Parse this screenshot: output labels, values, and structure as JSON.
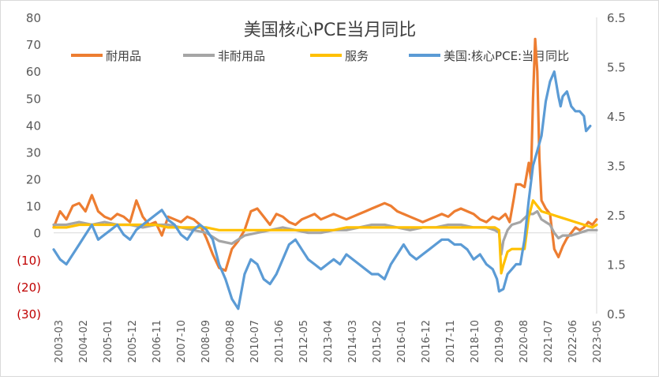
{
  "chart_data": {
    "type": "line",
    "title": "美国核心PCE当月同比",
    "x_tick_labels": [
      "2003-03",
      "2004-02",
      "2005-01",
      "2005-12",
      "2006-11",
      "2007-10",
      "2008-09",
      "2009-08",
      "2010-07",
      "2011-06",
      "2012-05",
      "2013-04",
      "2014-03",
      "2015-02",
      "2016-01",
      "2016-12",
      "2017-11",
      "2018-10",
      "2019-09",
      "2020-08",
      "2021-07",
      "2022-06",
      "2023-05"
    ],
    "y_left": {
      "ylim": [
        -30,
        80
      ],
      "ticks": [
        -30,
        -20,
        -10,
        0,
        10,
        20,
        30,
        40,
        50,
        60,
        70,
        80
      ],
      "tick_labels": [
        "(30)",
        "(20)",
        "(10)",
        "0",
        "10",
        "20",
        "30",
        "40",
        "50",
        "60",
        "70",
        "80"
      ],
      "negative_label_color": "#c00000"
    },
    "y_right": {
      "ylim": [
        0.5,
        6.5
      ],
      "ticks": [
        0.5,
        1.5,
        2.5,
        3.5,
        4.5,
        5.5,
        6.5
      ],
      "tick_labels": [
        "0.5",
        "1.5",
        "2.5",
        "3.5",
        "4.5",
        "5.5",
        "6.5"
      ]
    },
    "legend_position": "top",
    "grid": false,
    "zero_line": true,
    "series": [
      {
        "name": "耐用品",
        "axis": "left",
        "color": "#ed7d31",
        "points": [
          [
            0,
            2
          ],
          [
            3,
            8
          ],
          [
            6,
            5
          ],
          [
            9,
            10
          ],
          [
            12,
            11
          ],
          [
            15,
            8
          ],
          [
            18,
            14
          ],
          [
            21,
            8
          ],
          [
            24,
            6
          ],
          [
            27,
            5
          ],
          [
            30,
            7
          ],
          [
            33,
            6
          ],
          [
            36,
            4
          ],
          [
            39,
            12
          ],
          [
            42,
            6
          ],
          [
            45,
            3
          ],
          [
            48,
            4
          ],
          [
            51,
            -1
          ],
          [
            54,
            6
          ],
          [
            57,
            5
          ],
          [
            60,
            4
          ],
          [
            63,
            6
          ],
          [
            66,
            5
          ],
          [
            69,
            3
          ],
          [
            72,
            -2
          ],
          [
            75,
            -8
          ],
          [
            78,
            -13
          ],
          [
            81,
            -14
          ],
          [
            84,
            -6
          ],
          [
            87,
            -3
          ],
          [
            90,
            1
          ],
          [
            93,
            8
          ],
          [
            96,
            9
          ],
          [
            99,
            6
          ],
          [
            102,
            3
          ],
          [
            105,
            7
          ],
          [
            108,
            6
          ],
          [
            111,
            4
          ],
          [
            114,
            3
          ],
          [
            117,
            5
          ],
          [
            120,
            6
          ],
          [
            123,
            7
          ],
          [
            126,
            5
          ],
          [
            129,
            6
          ],
          [
            132,
            7
          ],
          [
            135,
            6
          ],
          [
            138,
            5
          ],
          [
            141,
            6
          ],
          [
            144,
            7
          ],
          [
            147,
            8
          ],
          [
            150,
            9
          ],
          [
            153,
            10
          ],
          [
            156,
            11
          ],
          [
            159,
            10
          ],
          [
            162,
            8
          ],
          [
            165,
            7
          ],
          [
            168,
            6
          ],
          [
            171,
            5
          ],
          [
            174,
            4
          ],
          [
            177,
            5
          ],
          [
            180,
            6
          ],
          [
            183,
            7
          ],
          [
            186,
            6
          ],
          [
            189,
            8
          ],
          [
            192,
            9
          ],
          [
            195,
            8
          ],
          [
            198,
            7
          ],
          [
            201,
            5
          ],
          [
            204,
            4
          ],
          [
            207,
            6
          ],
          [
            210,
            5
          ],
          [
            213,
            7
          ],
          [
            215,
            4
          ],
          [
            217,
            13
          ],
          [
            218,
            18
          ],
          [
            220,
            18
          ],
          [
            222,
            17
          ],
          [
            224,
            26
          ],
          [
            225,
            20
          ],
          [
            226,
            50
          ],
          [
            227,
            72
          ],
          [
            228,
            60
          ],
          [
            229,
            28
          ],
          [
            230,
            12
          ],
          [
            232,
            9
          ],
          [
            234,
            7
          ],
          [
            236,
            -6
          ],
          [
            238,
            -9
          ],
          [
            240,
            -5
          ],
          [
            242,
            -2
          ],
          [
            244,
            0
          ],
          [
            246,
            2
          ],
          [
            248,
            1
          ],
          [
            250,
            2
          ],
          [
            252,
            4
          ],
          [
            254,
            3
          ],
          [
            256,
            5
          ]
        ]
      },
      {
        "name": "非耐用品",
        "axis": "left",
        "color": "#a5a5a5",
        "points": [
          [
            0,
            3
          ],
          [
            6,
            3
          ],
          [
            12,
            4
          ],
          [
            18,
            3
          ],
          [
            24,
            4
          ],
          [
            30,
            3
          ],
          [
            36,
            3
          ],
          [
            42,
            2
          ],
          [
            48,
            3
          ],
          [
            54,
            3
          ],
          [
            60,
            2
          ],
          [
            66,
            1
          ],
          [
            72,
            0
          ],
          [
            78,
            -3
          ],
          [
            84,
            -4
          ],
          [
            90,
            -1
          ],
          [
            96,
            0
          ],
          [
            102,
            1
          ],
          [
            108,
            2
          ],
          [
            114,
            1
          ],
          [
            120,
            0
          ],
          [
            126,
            0
          ],
          [
            132,
            1
          ],
          [
            138,
            1
          ],
          [
            144,
            2
          ],
          [
            150,
            3
          ],
          [
            156,
            3
          ],
          [
            162,
            2
          ],
          [
            168,
            1
          ],
          [
            174,
            2
          ],
          [
            180,
            2
          ],
          [
            186,
            3
          ],
          [
            192,
            3
          ],
          [
            198,
            2
          ],
          [
            204,
            2
          ],
          [
            208,
            1
          ],
          [
            210,
            0
          ],
          [
            211,
            -8
          ],
          [
            212,
            -3
          ],
          [
            214,
            1
          ],
          [
            216,
            3
          ],
          [
            220,
            4
          ],
          [
            224,
            7
          ],
          [
            226,
            7
          ],
          [
            228,
            8
          ],
          [
            230,
            5
          ],
          [
            232,
            4
          ],
          [
            234,
            3
          ],
          [
            236,
            0
          ],
          [
            238,
            -2
          ],
          [
            240,
            -1
          ],
          [
            244,
            -1
          ],
          [
            248,
            0
          ],
          [
            252,
            1
          ],
          [
            256,
            1
          ]
        ]
      },
      {
        "name": "服务",
        "axis": "left",
        "color": "#ffc000",
        "points": [
          [
            0,
            2
          ],
          [
            6,
            2
          ],
          [
            12,
            3
          ],
          [
            18,
            3
          ],
          [
            24,
            3
          ],
          [
            30,
            3
          ],
          [
            36,
            3
          ],
          [
            42,
            3
          ],
          [
            48,
            3
          ],
          [
            54,
            2
          ],
          [
            60,
            2
          ],
          [
            66,
            2
          ],
          [
            72,
            2
          ],
          [
            78,
            1
          ],
          [
            84,
            1
          ],
          [
            90,
            1
          ],
          [
            96,
            1
          ],
          [
            102,
            1
          ],
          [
            108,
            1
          ],
          [
            114,
            1
          ],
          [
            120,
            1
          ],
          [
            126,
            1
          ],
          [
            132,
            1
          ],
          [
            138,
            2
          ],
          [
            144,
            2
          ],
          [
            150,
            2
          ],
          [
            156,
            2
          ],
          [
            162,
            2
          ],
          [
            168,
            2
          ],
          [
            174,
            2
          ],
          [
            180,
            2
          ],
          [
            186,
            2
          ],
          [
            192,
            2
          ],
          [
            198,
            2
          ],
          [
            204,
            2
          ],
          [
            208,
            2
          ],
          [
            210,
            1
          ],
          [
            211,
            -15
          ],
          [
            212,
            -12
          ],
          [
            214,
            -7
          ],
          [
            216,
            -6
          ],
          [
            220,
            -6
          ],
          [
            222,
            -6
          ],
          [
            224,
            6
          ],
          [
            226,
            12
          ],
          [
            228,
            10
          ],
          [
            230,
            8
          ],
          [
            234,
            7
          ],
          [
            238,
            6
          ],
          [
            242,
            5
          ],
          [
            246,
            4
          ],
          [
            250,
            3
          ],
          [
            254,
            2
          ],
          [
            256,
            3
          ]
        ]
      },
      {
        "name": "美国:核心PCE:当月同比",
        "axis": "right",
        "color": "#5b9bd5",
        "points": [
          [
            0,
            1.8
          ],
          [
            3,
            1.6
          ],
          [
            6,
            1.5
          ],
          [
            9,
            1.7
          ],
          [
            12,
            1.9
          ],
          [
            15,
            2.1
          ],
          [
            18,
            2.3
          ],
          [
            21,
            2.0
          ],
          [
            24,
            2.1
          ],
          [
            27,
            2.2
          ],
          [
            30,
            2.3
          ],
          [
            33,
            2.1
          ],
          [
            36,
            2.0
          ],
          [
            39,
            2.2
          ],
          [
            42,
            2.3
          ],
          [
            45,
            2.4
          ],
          [
            48,
            2.5
          ],
          [
            51,
            2.6
          ],
          [
            54,
            2.4
          ],
          [
            57,
            2.3
          ],
          [
            60,
            2.1
          ],
          [
            63,
            2.0
          ],
          [
            66,
            2.2
          ],
          [
            69,
            2.3
          ],
          [
            72,
            2.2
          ],
          [
            75,
            2.0
          ],
          [
            78,
            1.5
          ],
          [
            81,
            1.2
          ],
          [
            84,
            0.8
          ],
          [
            87,
            0.6
          ],
          [
            90,
            1.3
          ],
          [
            93,
            1.6
          ],
          [
            96,
            1.5
          ],
          [
            99,
            1.2
          ],
          [
            102,
            1.1
          ],
          [
            105,
            1.3
          ],
          [
            108,
            1.6
          ],
          [
            111,
            1.9
          ],
          [
            114,
            2.0
          ],
          [
            117,
            1.8
          ],
          [
            120,
            1.6
          ],
          [
            123,
            1.5
          ],
          [
            126,
            1.4
          ],
          [
            129,
            1.5
          ],
          [
            132,
            1.6
          ],
          [
            135,
            1.5
          ],
          [
            138,
            1.7
          ],
          [
            141,
            1.6
          ],
          [
            144,
            1.5
          ],
          [
            147,
            1.4
          ],
          [
            150,
            1.3
          ],
          [
            153,
            1.3
          ],
          [
            156,
            1.2
          ],
          [
            159,
            1.5
          ],
          [
            162,
            1.7
          ],
          [
            165,
            1.9
          ],
          [
            168,
            1.7
          ],
          [
            171,
            1.6
          ],
          [
            174,
            1.7
          ],
          [
            177,
            1.8
          ],
          [
            180,
            1.9
          ],
          [
            183,
            2.0
          ],
          [
            186,
            2.0
          ],
          [
            189,
            1.9
          ],
          [
            192,
            1.9
          ],
          [
            195,
            1.8
          ],
          [
            198,
            1.6
          ],
          [
            201,
            1.7
          ],
          [
            204,
            1.5
          ],
          [
            207,
            1.4
          ],
          [
            209,
            1.2
          ],
          [
            210,
            0.95
          ],
          [
            212,
            1.0
          ],
          [
            214,
            1.3
          ],
          [
            216,
            1.4
          ],
          [
            218,
            1.5
          ],
          [
            220,
            1.5
          ],
          [
            222,
            2.0
          ],
          [
            224,
            2.8
          ],
          [
            226,
            3.5
          ],
          [
            228,
            3.8
          ],
          [
            230,
            4.1
          ],
          [
            232,
            4.8
          ],
          [
            234,
            5.2
          ],
          [
            236,
            5.4
          ],
          [
            238,
            4.9
          ],
          [
            239,
            4.7
          ],
          [
            240,
            4.9
          ],
          [
            242,
            5.0
          ],
          [
            244,
            4.7
          ],
          [
            246,
            4.6
          ],
          [
            248,
            4.6
          ],
          [
            250,
            4.5
          ],
          [
            251,
            4.2
          ],
          [
            252,
            4.25
          ],
          [
            253,
            4.3
          ]
        ]
      }
    ]
  }
}
